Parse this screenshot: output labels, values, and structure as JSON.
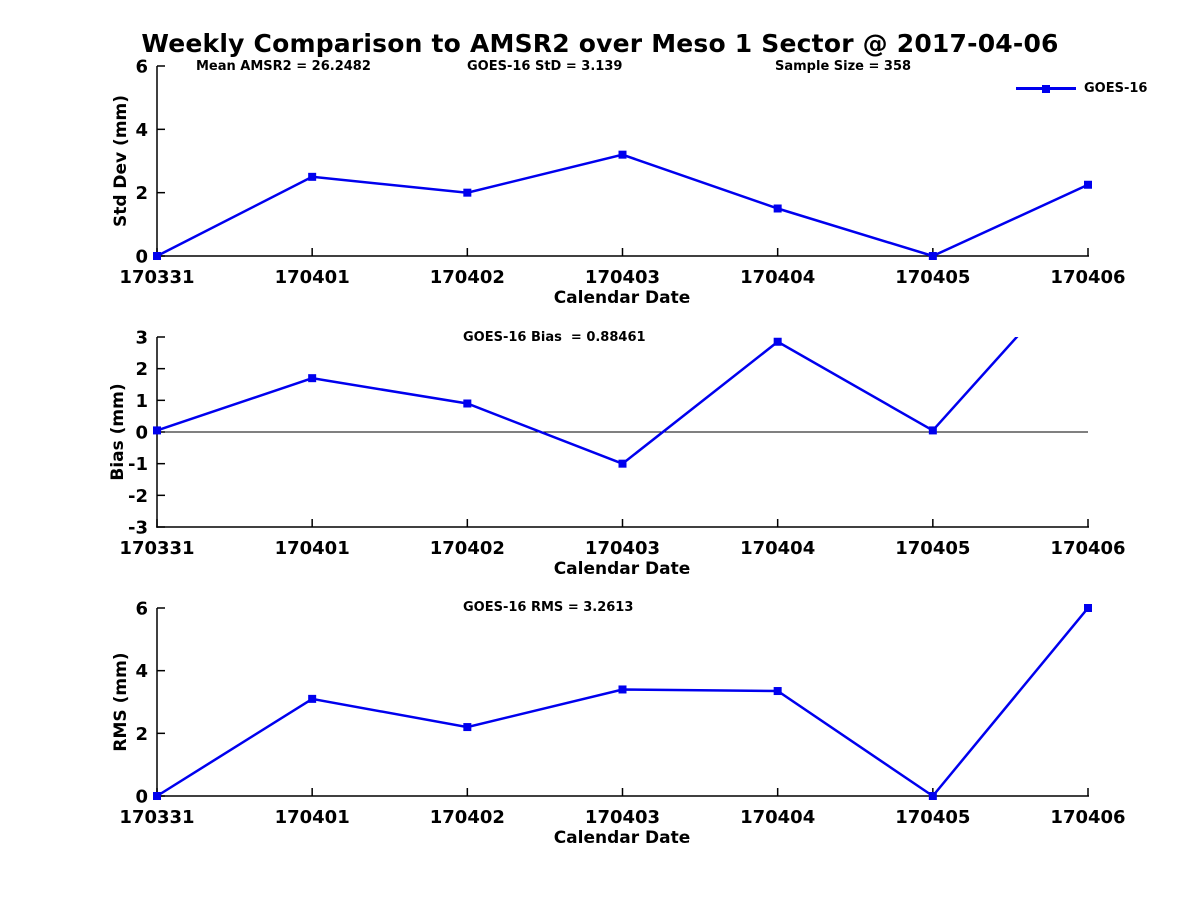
{
  "figure_title": "Weekly Comparison to AMSR2 over Meso 1 Sector @ 2017-04-06",
  "legend": {
    "label": "GOES-16"
  },
  "colors": {
    "series": "#0000ee",
    "axis": "#000000",
    "text": "#000000",
    "background": "#ffffff"
  },
  "stats": {
    "mean_amsr2": 26.2482,
    "goes16_std": 3.139,
    "sample_size": 358,
    "goes16_bias": 0.88461,
    "goes16_rms": 3.2613
  },
  "chart_data": [
    {
      "id": "std",
      "type": "line",
      "annotations": [
        "Mean AMSR2 = 26.2482",
        "GOES-16 StD = 3.139",
        "Sample Size = 358"
      ],
      "categories": [
        "170331",
        "170401",
        "170402",
        "170403",
        "170404",
        "170405",
        "170406"
      ],
      "series": [
        {
          "name": "GOES-16",
          "values": [
            0,
            2.5,
            2.0,
            3.2,
            1.5,
            0,
            2.25
          ]
        }
      ],
      "xlabel": "Calendar Date",
      "ylabel": "Std Dev (mm)",
      "ylim": [
        0,
        6
      ],
      "yticks": [
        0,
        2,
        4,
        6
      ],
      "zero_line": false,
      "grid": false,
      "show_legend": true,
      "legend_position": "upper-right",
      "marker": "square"
    },
    {
      "id": "bias",
      "type": "line",
      "annotations": [
        "GOES-16 Bias  = 0.88461"
      ],
      "categories": [
        "170331",
        "170401",
        "170402",
        "170403",
        "170404",
        "170405",
        "170406"
      ],
      "series": [
        {
          "name": "GOES-16",
          "values": [
            0.05,
            1.7,
            0.9,
            -1.0,
            2.85,
            0.05,
            5.5
          ]
        }
      ],
      "xlabel": "Calendar Date",
      "ylabel": "Bias (mm)",
      "ylim": [
        -3,
        3
      ],
      "yticks": [
        -3,
        -2,
        -1,
        0,
        1,
        2,
        3
      ],
      "zero_line": true,
      "grid": false,
      "show_legend": false,
      "marker": "square",
      "notes": "last value (170406) exceeds ylim top; line clipped at y=3, marker not drawn"
    },
    {
      "id": "rms",
      "type": "line",
      "annotations": [
        "GOES-16 RMS = 3.2613"
      ],
      "categories": [
        "170331",
        "170401",
        "170402",
        "170403",
        "170404",
        "170405",
        "170406"
      ],
      "series": [
        {
          "name": "GOES-16",
          "values": [
            0,
            3.1,
            2.2,
            3.4,
            3.35,
            0,
            6.0
          ]
        }
      ],
      "xlabel": "Calendar Date",
      "ylabel": "RMS (mm)",
      "ylim": [
        0,
        6
      ],
      "yticks": [
        0,
        2,
        4,
        6
      ],
      "zero_line": false,
      "grid": false,
      "show_legend": false,
      "marker": "square"
    }
  ]
}
